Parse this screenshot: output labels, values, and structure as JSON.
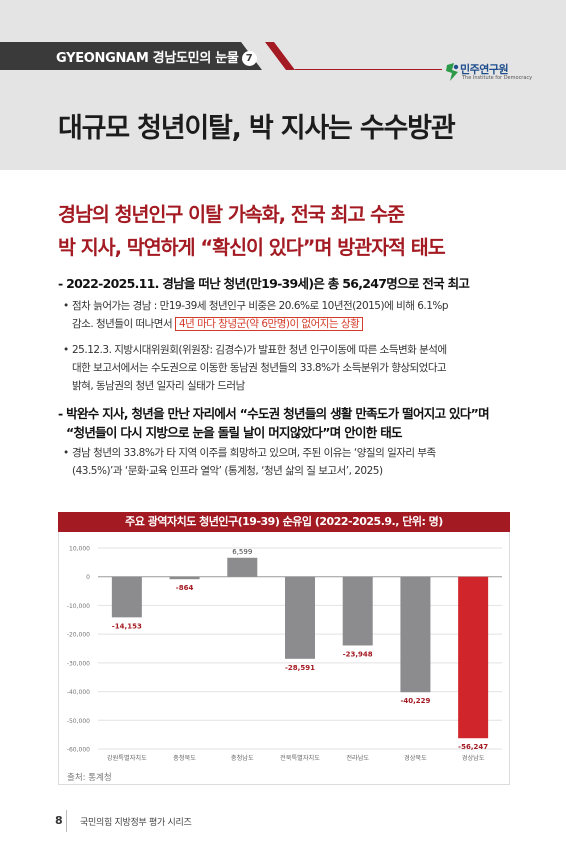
{
  "header": {
    "series": "GYEONGNAM 경남도민의 눈물",
    "series_no": "7",
    "title": "대규모 청년이탈, 박 지사는 수수방관"
  },
  "logo": {
    "name": "민주연구원",
    "sub": "The Institute for Democracy"
  },
  "subtitle": {
    "line1": "경남의 청년인구 이탈 가속화, 전국 최고 수준",
    "line2": "박 지사, 막연하게 “확신이 있다”며 방관자적 태도"
  },
  "section1": {
    "heading": "- 2022-2025.11. 경남을 떠난 청년(만19-39세)은 총 56,247명으로 전국 최고",
    "b1_l1": "점차 늙어가는 경남 : 만19-39세 청년인구 비중은 20.6%로 10년전(2015)에 비해 6.1%p",
    "b1_l2_pre": "감소. 청년들이 떠나면서 ",
    "b1_l2_hl": "4년 마다 창녕군(약 6만명)이 없어지는 상황",
    "b2_l1": "25.12.3. 지방시대위원회(위원장: 김경수)가 발표한 청년 인구이동에 따른 소득변화 분석에",
    "b2_l2": "대한 보고서에서는 수도권으로 이동한 동남권 청년들의 33.8%가 소득분위가 향상되었다고",
    "b2_l3": "밝혀, 동남권의 청년 일자리 실태가 드러남"
  },
  "section2": {
    "heading_l1": "- 박완수 지사, 청년을 만난 자리에서 “수도권 청년들의 생활 만족도가 떨어지고 있다”며",
    "heading_l2": "“청년들이 다시 지방으로 눈을 돌릴 날이 머지않았다”며 안이한 태도",
    "b1_l1": "경남 청년의 33.8%가 타 지역 이주를 희망하고 있으며, 주된 이유는 ‘양질의 일자리 부족",
    "b1_l2": "(43.5%)’과 ‘문화·교육 인프라 열악’ (통계청, ‘청년 삶의 질 보고서’, 2025)"
  },
  "colors": {
    "accent": "#a31a22",
    "bar": "#8c8c8f",
    "highlight": "#d43c2a",
    "bar_highlight": "#d0252a"
  },
  "chart_data": {
    "type": "bar",
    "title": "주요 광역자치도 청년인구(19-39) 순유입 (2022-2025.9., 단위: 명)",
    "categories": [
      "강원특별자치도",
      "충청북도",
      "충청남도",
      "전북특별자치도",
      "전라남도",
      "경상북도",
      "경상남도"
    ],
    "values": [
      -14153,
      -864,
      6599,
      -28591,
      -23948,
      -40229,
      -56247
    ],
    "value_labels": [
      "-14,153",
      "-864",
      "6,599",
      "-28,591",
      "-23,948",
      "-40,229",
      "-56,247"
    ],
    "highlight_index": 6,
    "ylim": [
      -60000,
      10000
    ],
    "yticks": [
      10000,
      0,
      -10000,
      -20000,
      -30000,
      -40000,
      -50000,
      -60000
    ],
    "ytick_labels": [
      "10,000",
      "0",
      "-10,000",
      "-20,000",
      "-30,000",
      "-40,000",
      "-50,000",
      "-60,000"
    ],
    "grid": true,
    "source": "출처: 통계청"
  },
  "footer": {
    "page": "8",
    "text": "국민의힘 지방정부 평가 시리즈"
  }
}
